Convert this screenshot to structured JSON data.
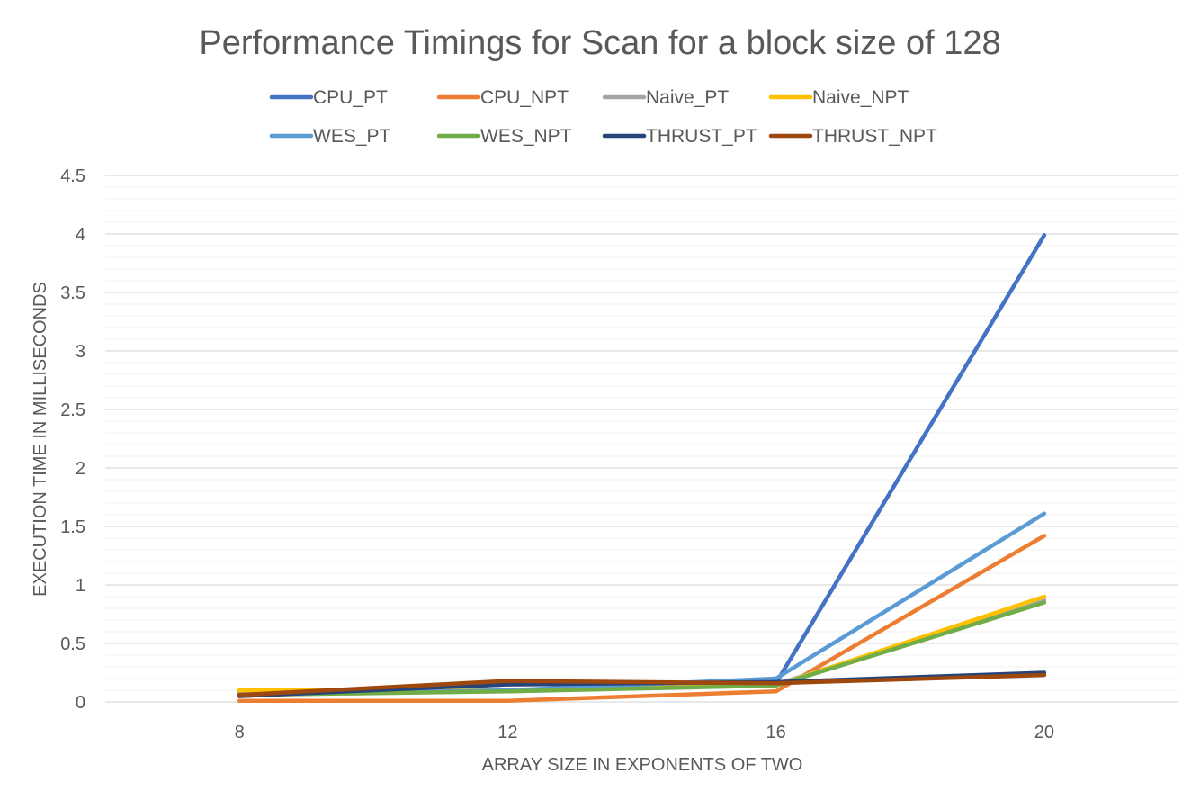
{
  "chart_data": {
    "type": "line",
    "title": "Performance Timings for Scan for a block size of 128",
    "xlabel": "ARRAY SIZE IN EXPONENTS OF TWO",
    "ylabel": "EXECUTION TIME IN MILLISECONDS",
    "categories": [
      "8",
      "12",
      "16",
      "20"
    ],
    "ylim": [
      0,
      4.5
    ],
    "yticks": [
      "0",
      "0.5",
      "1",
      "1.5",
      "2",
      "2.5",
      "3",
      "3.5",
      "4",
      "4.5"
    ],
    "minor_grid": true,
    "grid": true,
    "legend_position": "top",
    "series": [
      {
        "name": "CPU_PT",
        "color": "#4472C4",
        "values": [
          0.05,
          0.15,
          0.16,
          3.99
        ]
      },
      {
        "name": "CPU_NPT",
        "color": "#ED7D31",
        "values": [
          0.01,
          0.01,
          0.09,
          1.42
        ]
      },
      {
        "name": "Naive_PT",
        "color": "#A5A5A5",
        "values": [
          0.08,
          0.09,
          0.15,
          0.87
        ]
      },
      {
        "name": "Naive_NPT",
        "color": "#FFC000",
        "values": [
          0.1,
          0.1,
          0.14,
          0.9
        ]
      },
      {
        "name": "WES_PT",
        "color": "#5B9BD5",
        "values": [
          0.06,
          0.1,
          0.2,
          1.61
        ]
      },
      {
        "name": "WES_NPT",
        "color": "#70AD47",
        "values": [
          0.06,
          0.09,
          0.14,
          0.85
        ]
      },
      {
        "name": "THRUST_PT",
        "color": "#264478",
        "values": [
          0.05,
          0.15,
          0.17,
          0.25
        ]
      },
      {
        "name": "THRUST_NPT",
        "color": "#9E480E",
        "values": [
          0.06,
          0.18,
          0.16,
          0.23
        ]
      }
    ]
  }
}
